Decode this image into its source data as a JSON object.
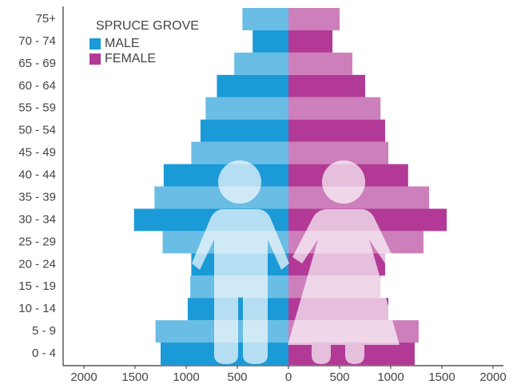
{
  "chart_data": {
    "type": "pyramid",
    "title": "SPRUCE GROVE",
    "categories": [
      "75+",
      "70 - 74",
      "65 - 69",
      "60 - 64",
      "55 - 59",
      "50 - 54",
      "45 - 49",
      "40 - 44",
      "35 - 39",
      "30 - 34",
      "25 - 29",
      "20 - 24",
      "15 - 19",
      "10 - 14",
      "5 - 9",
      "0 - 4"
    ],
    "series": [
      {
        "name": "MALE",
        "color": "#1a9ad6",
        "side": "left",
        "values": [
          450,
          350,
          530,
          700,
          810,
          860,
          950,
          1220,
          1310,
          1510,
          1230,
          950,
          960,
          985,
          1300,
          1250
        ]
      },
      {
        "name": "FEMALE",
        "color": "#b23a96",
        "side": "right",
        "values": [
          500,
          430,
          625,
          750,
          900,
          945,
          977,
          1170,
          1375,
          1547,
          1320,
          945,
          900,
          977,
          1273,
          1234
        ]
      }
    ],
    "xlim": [
      -2000,
      2000
    ],
    "xticks": [
      {
        "value": -2000,
        "label": "2000"
      },
      {
        "value": -1500,
        "label": "1500"
      },
      {
        "value": -1000,
        "label": "1000"
      },
      {
        "value": -500,
        "label": "500"
      },
      0,
      500,
      1000,
      1500,
      2000
    ]
  }
}
